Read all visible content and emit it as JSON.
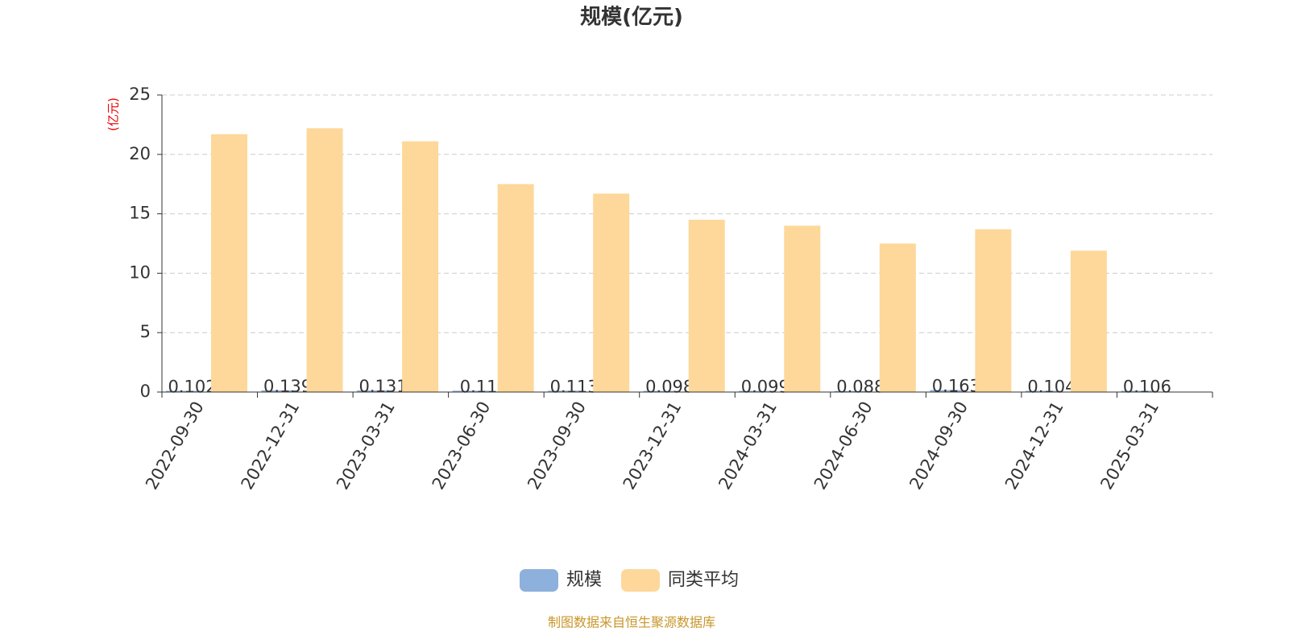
{
  "chart_data": {
    "type": "bar",
    "title": "规模(亿元)",
    "y_unit": "(亿元)",
    "categories": [
      "2022-09-30",
      "2022-12-31",
      "2023-03-31",
      "2023-06-30",
      "2023-09-30",
      "2023-12-31",
      "2024-03-31",
      "2024-06-30",
      "2024-09-30",
      "2024-12-31",
      "2025-03-31"
    ],
    "series": [
      {
        "name": "规模",
        "color": "#8eb0dc",
        "values": [
          0.102,
          0.139,
          0.131,
          0.11,
          0.113,
          0.098,
          0.099,
          0.088,
          0.163,
          0.104,
          0.106
        ]
      },
      {
        "name": "同类平均",
        "color": "#fdd89a",
        "values": [
          21.7,
          22.2,
          21.1,
          17.5,
          16.7,
          14.5,
          14.0,
          12.5,
          13.7,
          11.9,
          null
        ]
      }
    ],
    "ylim": [
      0,
      25
    ],
    "yticks": [
      0,
      5,
      10,
      15,
      20,
      25
    ],
    "grid": true,
    "source": "制图数据来自恒生聚源数据库"
  }
}
